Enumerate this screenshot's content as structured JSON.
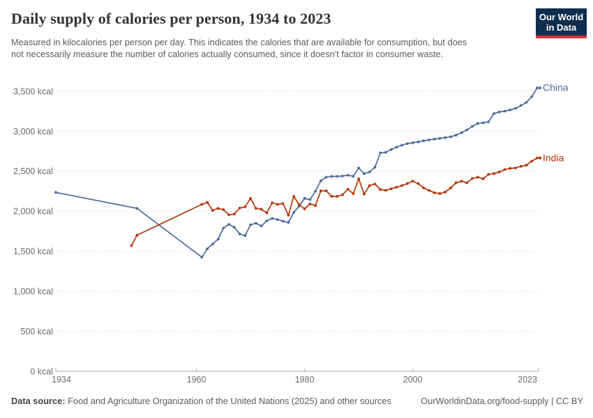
{
  "header": {
    "title": "Daily supply of calories per person, 1934 to 2023",
    "subtitle": "Measured in kilocalories per person per day. This indicates the calories that are available for consumption, but does not necessarily measure the number of calories actually consumed, since it doesn't factor in consumer waste.",
    "logo": {
      "line1": "Our World",
      "line2": "in Data",
      "bg_color": "#0F2E4F",
      "stripe_color": "#D7332E"
    }
  },
  "chart_data": {
    "type": "line",
    "title": "Daily supply of calories per person, 1934 to 2023",
    "unit": "kcal",
    "grid": "horizontal-dashed",
    "legend_position": "end-of-line",
    "xlim": [
      1934,
      2023
    ],
    "ylim": [
      0,
      3500
    ],
    "x_axis": {
      "ticks": [
        {
          "year": 1934,
          "label": "1934"
        },
        {
          "year": 1960,
          "label": "1960"
        },
        {
          "year": 1980,
          "label": "1980"
        },
        {
          "year": 2000,
          "label": "2000"
        },
        {
          "year": 2023,
          "label": "2023"
        }
      ]
    },
    "y_axis": {
      "ticks": [
        {
          "value": 0,
          "label": "0 kcal"
        },
        {
          "value": 500,
          "label": "500 kcal"
        },
        {
          "value": 1000,
          "label": "1,000 kcal"
        },
        {
          "value": 1500,
          "label": "1,500 kcal"
        },
        {
          "value": 2000,
          "label": "2,000 kcal"
        },
        {
          "value": 2500,
          "label": "2,500 kcal"
        },
        {
          "value": 3000,
          "label": "3,000 kcal"
        },
        {
          "value": 3500,
          "label": "3,500 kcal"
        }
      ]
    },
    "series": [
      {
        "name": "China",
        "color": "#4C6A9C",
        "points": [
          [
            1934,
            2235
          ],
          [
            1949,
            2035
          ],
          [
            1961,
            1425
          ],
          [
            1962,
            1530
          ],
          [
            1963,
            1590
          ],
          [
            1964,
            1650
          ],
          [
            1965,
            1790
          ],
          [
            1966,
            1835
          ],
          [
            1967,
            1800
          ],
          [
            1968,
            1715
          ],
          [
            1969,
            1695
          ],
          [
            1970,
            1830
          ],
          [
            1971,
            1850
          ],
          [
            1972,
            1815
          ],
          [
            1973,
            1880
          ],
          [
            1974,
            1910
          ],
          [
            1975,
            1895
          ],
          [
            1976,
            1875
          ],
          [
            1977,
            1860
          ],
          [
            1978,
            1985
          ],
          [
            1979,
            2065
          ],
          [
            1980,
            2160
          ],
          [
            1981,
            2145
          ],
          [
            1982,
            2250
          ],
          [
            1983,
            2380
          ],
          [
            1984,
            2425
          ],
          [
            1985,
            2435
          ],
          [
            1986,
            2435
          ],
          [
            1987,
            2440
          ],
          [
            1988,
            2450
          ],
          [
            1989,
            2435
          ],
          [
            1990,
            2540
          ],
          [
            1991,
            2470
          ],
          [
            1992,
            2490
          ],
          [
            1993,
            2550
          ],
          [
            1994,
            2730
          ],
          [
            1995,
            2735
          ],
          [
            1996,
            2770
          ],
          [
            1997,
            2800
          ],
          [
            1998,
            2825
          ],
          [
            1999,
            2845
          ],
          [
            2000,
            2855
          ],
          [
            2001,
            2865
          ],
          [
            2002,
            2880
          ],
          [
            2003,
            2890
          ],
          [
            2004,
            2900
          ],
          [
            2005,
            2910
          ],
          [
            2006,
            2920
          ],
          [
            2007,
            2930
          ],
          [
            2008,
            2950
          ],
          [
            2009,
            2980
          ],
          [
            2010,
            3015
          ],
          [
            2011,
            3060
          ],
          [
            2012,
            3095
          ],
          [
            2013,
            3105
          ],
          [
            2014,
            3115
          ],
          [
            2015,
            3220
          ],
          [
            2016,
            3240
          ],
          [
            2017,
            3250
          ],
          [
            2018,
            3265
          ],
          [
            2019,
            3285
          ],
          [
            2020,
            3320
          ],
          [
            2021,
            3360
          ],
          [
            2022,
            3430
          ],
          [
            2023,
            3540
          ]
        ]
      },
      {
        "name": "India",
        "color": "#B13507",
        "points": [
          [
            1948,
            1570
          ],
          [
            1949,
            1700
          ],
          [
            1961,
            2085
          ],
          [
            1962,
            2110
          ],
          [
            1963,
            2010
          ],
          [
            1964,
            2035
          ],
          [
            1965,
            2020
          ],
          [
            1966,
            1955
          ],
          [
            1967,
            1965
          ],
          [
            1968,
            2040
          ],
          [
            1969,
            2055
          ],
          [
            1970,
            2160
          ],
          [
            1971,
            2035
          ],
          [
            1972,
            2025
          ],
          [
            1973,
            1980
          ],
          [
            1974,
            2105
          ],
          [
            1975,
            2085
          ],
          [
            1976,
            2095
          ],
          [
            1977,
            1950
          ],
          [
            1978,
            2185
          ],
          [
            1979,
            2080
          ],
          [
            1980,
            2030
          ],
          [
            1981,
            2090
          ],
          [
            1982,
            2070
          ],
          [
            1983,
            2255
          ],
          [
            1984,
            2255
          ],
          [
            1985,
            2185
          ],
          [
            1986,
            2185
          ],
          [
            1987,
            2205
          ],
          [
            1988,
            2275
          ],
          [
            1989,
            2220
          ],
          [
            1990,
            2405
          ],
          [
            1991,
            2215
          ],
          [
            1992,
            2320
          ],
          [
            1993,
            2340
          ],
          [
            1994,
            2270
          ],
          [
            1995,
            2260
          ],
          [
            1996,
            2280
          ],
          [
            1997,
            2300
          ],
          [
            1998,
            2320
          ],
          [
            1999,
            2345
          ],
          [
            2000,
            2375
          ],
          [
            2001,
            2345
          ],
          [
            2002,
            2290
          ],
          [
            2003,
            2260
          ],
          [
            2004,
            2230
          ],
          [
            2005,
            2220
          ],
          [
            2006,
            2240
          ],
          [
            2007,
            2290
          ],
          [
            2008,
            2355
          ],
          [
            2009,
            2375
          ],
          [
            2010,
            2355
          ],
          [
            2011,
            2410
          ],
          [
            2012,
            2425
          ],
          [
            2013,
            2405
          ],
          [
            2014,
            2460
          ],
          [
            2015,
            2470
          ],
          [
            2016,
            2490
          ],
          [
            2017,
            2520
          ],
          [
            2018,
            2535
          ],
          [
            2019,
            2540
          ],
          [
            2020,
            2560
          ],
          [
            2021,
            2575
          ],
          [
            2022,
            2625
          ],
          [
            2023,
            2665
          ]
        ]
      }
    ]
  },
  "footer": {
    "source_label": "Data source:",
    "source_text": " Food and Agriculture Organization of the United Nations (2025) and other sources",
    "credit": "OurWorldinData.org/food-supply | CC BY"
  }
}
